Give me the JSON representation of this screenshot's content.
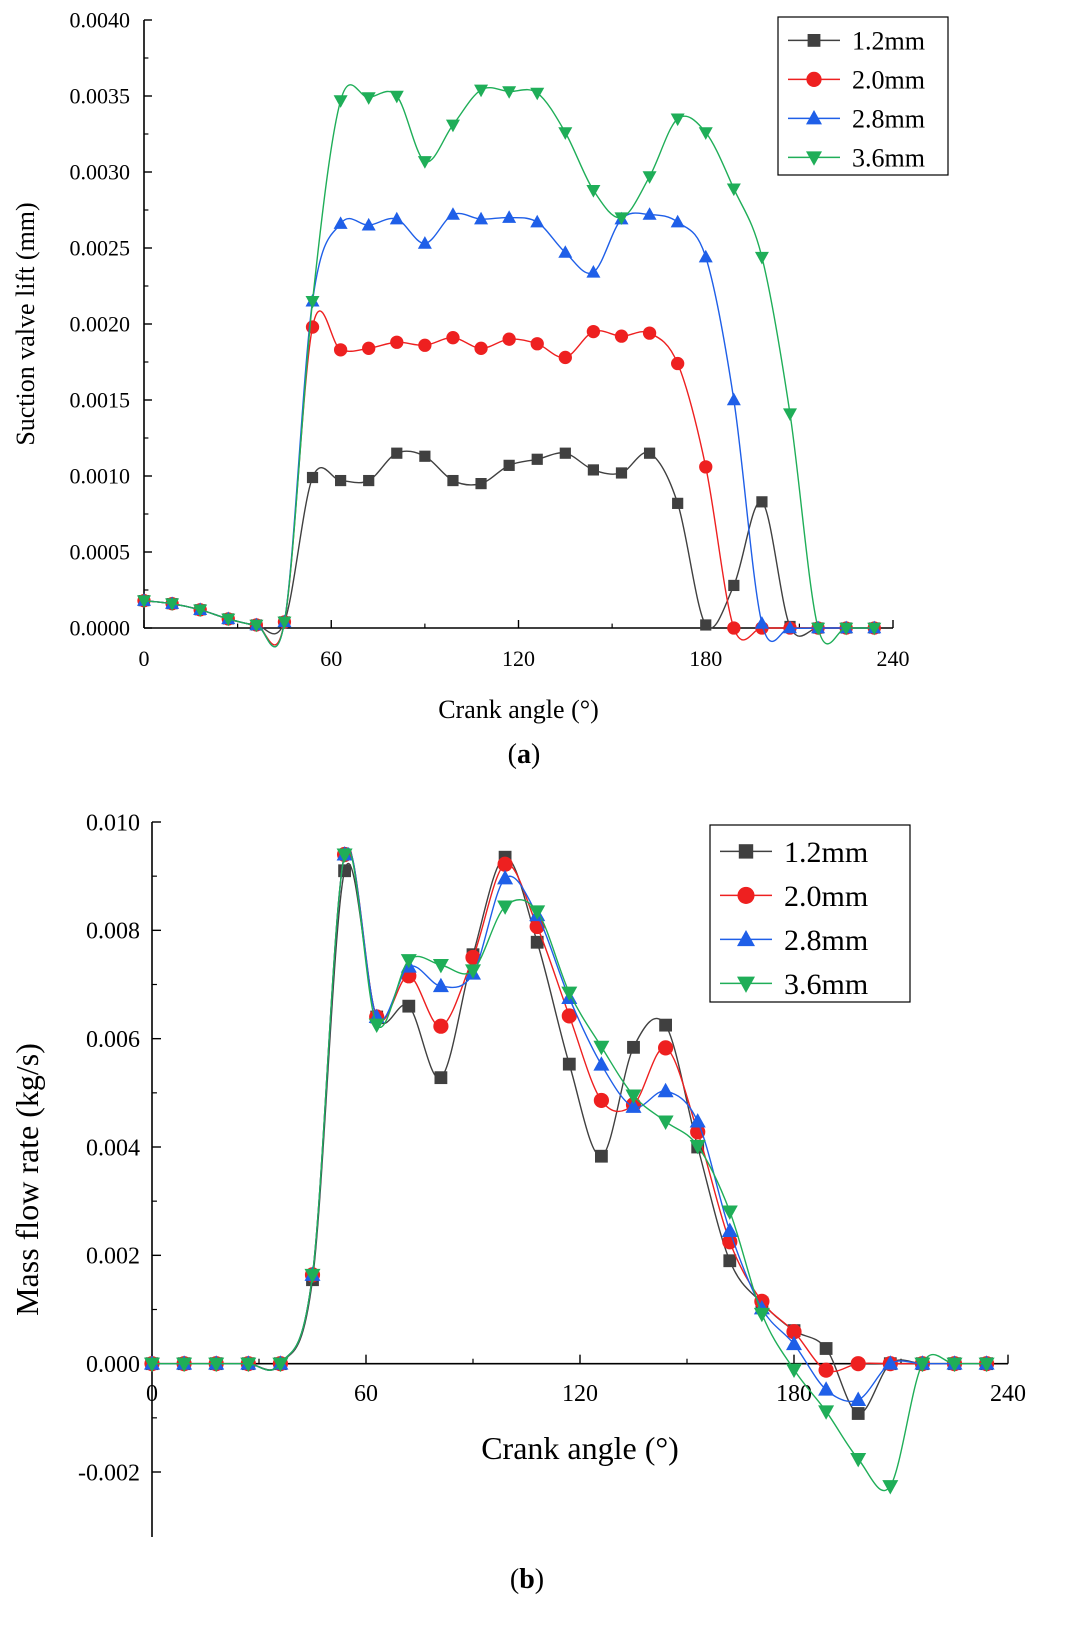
{
  "chart_data": [
    {
      "id": "a",
      "type": "line",
      "caption": "a",
      "xlabel": "Crank angle (°)",
      "ylabel": "Suction valve lift (mm)",
      "xlim": [
        0,
        240
      ],
      "ylim": [
        0,
        0.004
      ],
      "xticks": [
        "0",
        "60",
        "120",
        "180",
        "240"
      ],
      "xtick_values": [
        0,
        60,
        120,
        180,
        240
      ],
      "yticks": [
        "0.0000",
        "0.0005",
        "0.0010",
        "0.0015",
        "0.0020",
        "0.0025",
        "0.0030",
        "0.0035",
        "0.0040"
      ],
      "ytick_values": [
        0,
        0.0005,
        0.001,
        0.0015,
        0.002,
        0.0025,
        0.003,
        0.0035,
        0.004
      ],
      "legend_position": "top-right",
      "series": [
        {
          "name": "1.2mm",
          "color": "#404040",
          "marker": "square",
          "x": [
            0,
            9,
            18,
            27,
            36,
            45,
            54,
            63,
            72,
            81,
            90,
            99,
            108,
            117,
            126,
            135,
            144,
            153,
            162,
            171,
            180,
            189,
            198,
            207,
            216,
            225,
            234
          ],
          "y": [
            0.00018,
            0.00016,
            0.00012,
            6e-05,
            2e-05,
            4e-05,
            0.00099,
            0.00097,
            0.00097,
            0.00115,
            0.00113,
            0.00097,
            0.00095,
            0.00107,
            0.00111,
            0.00115,
            0.00104,
            0.00102,
            0.00115,
            0.00082,
            2e-05,
            0.00028,
            0.00083,
            1e-05,
            0.0,
            0.0,
            0.0
          ]
        },
        {
          "name": "2.0mm",
          "color": "#ee2020",
          "marker": "circle",
          "x": [
            0,
            9,
            18,
            27,
            36,
            45,
            54,
            63,
            72,
            81,
            90,
            99,
            108,
            117,
            126,
            135,
            144,
            153,
            162,
            171,
            180,
            189,
            198,
            207,
            216,
            225,
            234
          ],
          "y": [
            0.00018,
            0.00016,
            0.00012,
            6e-05,
            2e-05,
            4e-05,
            0.00198,
            0.00183,
            0.00184,
            0.00188,
            0.00186,
            0.00191,
            0.00184,
            0.0019,
            0.00187,
            0.00178,
            0.00195,
            0.00192,
            0.00194,
            0.00174,
            0.00106,
            0.0,
            0.0,
            0.0,
            0.0,
            0.0,
            0.0
          ]
        },
        {
          "name": "2.8mm",
          "color": "#1f5fe8",
          "marker": "triangle-up",
          "x": [
            0,
            9,
            18,
            27,
            36,
            45,
            54,
            63,
            72,
            81,
            90,
            99,
            108,
            117,
            126,
            135,
            144,
            153,
            162,
            171,
            180,
            189,
            198,
            207,
            216,
            225,
            234
          ],
          "y": [
            0.00018,
            0.00016,
            0.00012,
            6e-05,
            2e-05,
            4e-05,
            0.00215,
            0.00266,
            0.00265,
            0.00269,
            0.00253,
            0.00272,
            0.00269,
            0.0027,
            0.00267,
            0.00247,
            0.00234,
            0.00269,
            0.00272,
            0.00267,
            0.00244,
            0.0015,
            3e-05,
            0.0,
            0.0,
            0.0,
            0.0
          ]
        },
        {
          "name": "3.6mm",
          "color": "#1fae58",
          "marker": "triangle-down",
          "x": [
            0,
            9,
            18,
            27,
            36,
            45,
            54,
            63,
            72,
            81,
            90,
            99,
            108,
            117,
            126,
            135,
            144,
            153,
            162,
            171,
            180,
            189,
            198,
            207,
            216,
            225,
            234
          ],
          "y": [
            0.00018,
            0.00016,
            0.00012,
            6e-05,
            2e-05,
            4e-05,
            0.00215,
            0.00347,
            0.00349,
            0.0035,
            0.00307,
            0.00331,
            0.00354,
            0.00353,
            0.00352,
            0.00326,
            0.00288,
            0.0027,
            0.00297,
            0.00335,
            0.00326,
            0.00289,
            0.00244,
            0.00141,
            0.0,
            0.0,
            0.0
          ]
        }
      ]
    },
    {
      "id": "b",
      "type": "line",
      "caption": "b",
      "xlabel": "Crank angle (°)",
      "ylabel": "Mass flow rate (kg/s)",
      "xlim": [
        0,
        240
      ],
      "ylim": [
        -0.0032,
        0.01
      ],
      "xticks": [
        "0",
        "60",
        "120",
        "180",
        "240"
      ],
      "xtick_values": [
        0,
        60,
        120,
        180,
        240
      ],
      "yticks": [
        "-0.002",
        "0.000",
        "0.002",
        "0.004",
        "0.006",
        "0.008",
        "0.010"
      ],
      "ytick_values": [
        -0.002,
        0,
        0.002,
        0.004,
        0.006,
        0.008,
        0.01
      ],
      "legend_position": "top-right",
      "series": [
        {
          "name": "1.2mm",
          "color": "#404040",
          "marker": "square",
          "x": [
            0,
            9,
            18,
            27,
            36,
            45,
            54,
            63,
            72,
            81,
            90,
            99,
            108,
            117,
            126,
            135,
            144,
            153,
            162,
            171,
            180,
            189,
            198,
            207,
            216,
            225,
            234
          ],
          "y": [
            0,
            0,
            0,
            0,
            0,
            0.00155,
            0.0091,
            0.0064,
            0.0066,
            0.00528,
            0.00755,
            0.00935,
            0.00778,
            0.00553,
            0.00383,
            0.00584,
            0.00625,
            0.004,
            0.0019,
            0.00112,
            0.00061,
            0.00028,
            -0.00092,
            0,
            0,
            0,
            0
          ]
        },
        {
          "name": "2.0mm",
          "color": "#ee2020",
          "marker": "circle",
          "x": [
            0,
            9,
            18,
            27,
            36,
            45,
            54,
            63,
            72,
            81,
            90,
            99,
            108,
            117,
            126,
            135,
            144,
            153,
            162,
            171,
            180,
            189,
            198,
            207,
            216,
            225,
            234
          ],
          "y": [
            0,
            0,
            0,
            0,
            0,
            0.00164,
            0.0094,
            0.0064,
            0.00716,
            0.00623,
            0.0075,
            0.00922,
            0.00807,
            0.00642,
            0.00486,
            0.00478,
            0.00583,
            0.00428,
            0.00225,
            0.00115,
            0.00059,
            -0.00012,
            0,
            0,
            0,
            0,
            0
          ]
        },
        {
          "name": "2.8mm",
          "color": "#1f5fe8",
          "marker": "triangle-up",
          "x": [
            0,
            9,
            18,
            27,
            36,
            45,
            54,
            63,
            72,
            81,
            90,
            99,
            108,
            117,
            126,
            135,
            144,
            153,
            162,
            171,
            180,
            189,
            198,
            207,
            216,
            225,
            234
          ],
          "y": [
            0,
            0,
            0,
            0,
            0,
            0.00164,
            0.0094,
            0.0064,
            0.00733,
            0.00697,
            0.0072,
            0.00896,
            0.00828,
            0.00675,
            0.00552,
            0.00474,
            0.00503,
            0.00447,
            0.00245,
            0.00102,
            0.00036,
            -0.00048,
            -0.00067,
            0,
            0,
            0,
            0
          ]
        },
        {
          "name": "3.6mm",
          "color": "#1fae58",
          "marker": "triangle-down",
          "x": [
            0,
            9,
            18,
            27,
            36,
            45,
            54,
            63,
            72,
            81,
            90,
            99,
            108,
            117,
            126,
            135,
            144,
            153,
            162,
            171,
            180,
            189,
            198,
            207,
            216,
            225,
            234
          ],
          "y": [
            0,
            0,
            0,
            0,
            0,
            0.00164,
            0.0094,
            0.00626,
            0.00745,
            0.00736,
            0.00726,
            0.00844,
            0.00835,
            0.00685,
            0.00585,
            0.00495,
            0.00447,
            0.00402,
            0.00281,
            0.00092,
            -0.00011,
            -0.00088,
            -0.00176,
            -0.00226,
            0,
            0,
            0
          ]
        }
      ]
    }
  ]
}
